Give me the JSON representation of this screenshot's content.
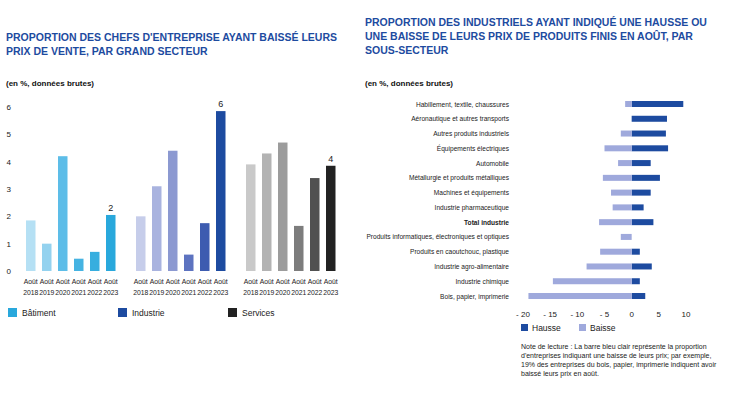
{
  "chart_data": [
    {
      "type": "bar",
      "title": "PROPORTION DES CHEFS D'ENTREPRISE AYANT BAISSÉ LEURS PRIX DE VENTE, PAR GRAND SECTEUR",
      "subtitle": "(en %, données brutes)",
      "categories": [
        "Août 2018",
        "Août 2019",
        "Août 2020",
        "Août 2021",
        "Août 2022",
        "Août 2023"
      ],
      "series": [
        {
          "name": "Bâtiment",
          "color": "#29a8dc",
          "colors": [
            "#b5e0f4",
            "#94d2ef",
            "#5dbde8",
            "#45b3e2",
            "#37aedf",
            "#29a8dc"
          ],
          "values": [
            1.85,
            1.0,
            4.2,
            0.45,
            0.7,
            2.05
          ],
          "value_labels": [
            null,
            null,
            null,
            null,
            null,
            "2"
          ]
        },
        {
          "name": "Industrie",
          "color": "#1d4ba0",
          "colors": [
            "#c6cdea",
            "#a9b3df",
            "#8c99d1",
            "#5d73c0",
            "#3d5cb0",
            "#1d4ba0"
          ],
          "values": [
            2.0,
            3.1,
            4.4,
            0.6,
            1.75,
            5.85
          ],
          "value_labels": [
            null,
            null,
            null,
            null,
            null,
            "6"
          ]
        },
        {
          "name": "Services",
          "color": "#222222",
          "colors": [
            "#c9c9c9",
            "#b3b3b3",
            "#9c9c9c",
            "#7d7d7d",
            "#515151",
            "#222222"
          ],
          "values": [
            3.9,
            4.3,
            4.7,
            1.65,
            3.4,
            3.85
          ],
          "value_labels": [
            null,
            null,
            null,
            null,
            null,
            "4"
          ]
        }
      ],
      "ylim": [
        0,
        6
      ],
      "yticks": [
        0,
        1,
        2,
        3,
        4,
        5,
        6
      ],
      "grid": false,
      "legend": "bottom",
      "data_labels": true
    },
    {
      "type": "bar",
      "title": "PROPORTION DES INDUSTRIELS AYANT INDIQUÉ UNE HAUSSE OU UNE BAISSE DE LEURS PRIX DE PRODUITS FINIS EN AOÛT, PAR SOUS-SECTEUR",
      "subtitle": "(en %, données brutes)",
      "orientation": "horizontal",
      "categories": [
        "Habillement, textile, chaussures",
        "Aéronautique et autres transports",
        "Autres produits industriels",
        "Équipements électriques",
        "Automobile",
        "Métallurgie et produits métalliques",
        "Machines et équipements",
        "Industrie pharmaceutique",
        "Total industrie",
        "Produits informatiques, électroniques et optiques",
        "Produits en caoutchouc, plastique",
        "Industrie agro-alimentaire",
        "Industrie chimique",
        "Bois, papier, imprimerie"
      ],
      "series": [
        {
          "name": "Hausse",
          "color": "#1d4ba0",
          "values": [
            9.5,
            6.5,
            6.3,
            6.7,
            3.5,
            5.2,
            3.5,
            2.2,
            4.0,
            0,
            1.5,
            3.7,
            1.5,
            2.5
          ]
        },
        {
          "name": "Baisse",
          "color": "#9fa9dc",
          "values": [
            -1.2,
            0,
            -2.0,
            -5.0,
            -2.5,
            -5.3,
            -3.8,
            -3.5,
            -6.0,
            -2.0,
            -5.8,
            -8.3,
            -14.5,
            -19.0
          ]
        }
      ],
      "xlim": [
        -20,
        10
      ],
      "xticks": [
        {
          "value": -20,
          "label": "- 20"
        },
        {
          "value": -15,
          "label": "- 15"
        },
        {
          "value": -10,
          "label": "- 10"
        },
        {
          "value": -5,
          "label": "- 5"
        },
        0,
        5,
        10
      ],
      "grid": false,
      "legend": "bottom",
      "annotations": [
        "Note de lecture : La barre bleu clair représente la proportion d'entreprises indiquant une baisse de leurs prix; par exemple, 19% des entreprises du bois, papier, imprimerie indiquent avoir baissé leurs prix en août."
      ]
    }
  ]
}
